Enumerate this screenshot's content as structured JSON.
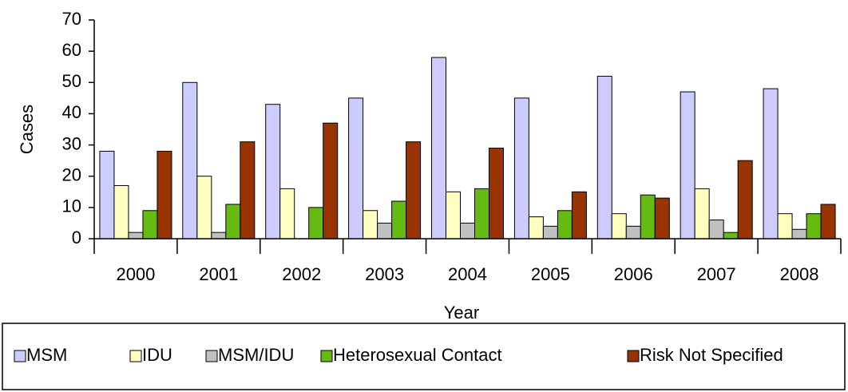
{
  "chart_data": {
    "type": "bar",
    "x_label": "Year",
    "y_label": "Cases",
    "categories": [
      "2000",
      "2001",
      "2002",
      "2003",
      "2004",
      "2005",
      "2006",
      "2007",
      "2008"
    ],
    "series": [
      {
        "name": "MSM",
        "color": "#ccccff",
        "values": [
          28,
          50,
          43,
          45,
          58,
          45,
          52,
          47,
          48
        ]
      },
      {
        "name": "IDU",
        "color": "#ffffc0",
        "values": [
          17,
          20,
          16,
          9,
          15,
          7,
          8,
          16,
          8
        ]
      },
      {
        "name": "MSM/IDU",
        "color": "#c0c0c0",
        "values": [
          2,
          2,
          0,
          5,
          5,
          4,
          4,
          6,
          3
        ]
      },
      {
        "name": "Heterosexual Contact",
        "color": "#66bb11",
        "values": [
          9,
          11,
          10,
          12,
          16,
          9,
          14,
          2,
          8
        ]
      },
      {
        "name": "Risk Not Specified",
        "color": "#993300",
        "values": [
          28,
          31,
          37,
          31,
          29,
          15,
          13,
          25,
          11
        ]
      }
    ],
    "ylim": [
      0,
      70
    ],
    "yticks": [
      0,
      10,
      20,
      30,
      40,
      50,
      60,
      70
    ],
    "legend": "bottom"
  }
}
